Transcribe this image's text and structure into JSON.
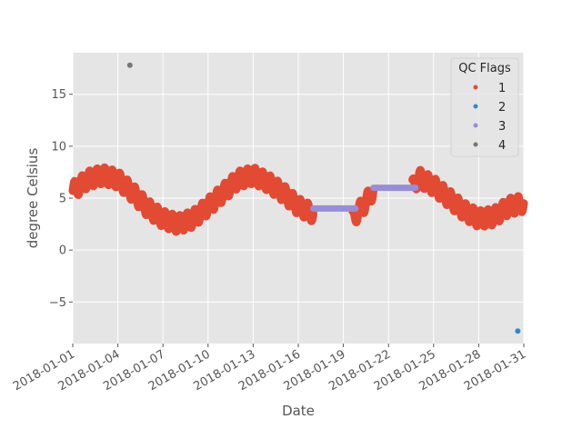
{
  "chart_data": {
    "type": "scatter",
    "title": "",
    "xlabel": "Date",
    "ylabel": "degree Celsius",
    "x_type": "date",
    "xlim": [
      "2018-01-01",
      "2018-01-31"
    ],
    "ylim": [
      -9,
      19
    ],
    "x_ticks": [
      "2018-01-01",
      "2018-01-04",
      "2018-01-07",
      "2018-01-10",
      "2018-01-13",
      "2018-01-16",
      "2018-01-19",
      "2018-01-22",
      "2018-01-25",
      "2018-01-28",
      "2018-01-31"
    ],
    "y_ticks": [
      -5,
      0,
      5,
      10,
      15
    ],
    "y_tick_labels": [
      "−5",
      "0",
      "5",
      "10",
      "15"
    ],
    "grid": true,
    "legend": {
      "title": "QC Flags",
      "placement": "top-right",
      "entries": [
        {
          "label": "1",
          "color": "#E24A33"
        },
        {
          "label": "2",
          "color": "#348ABD"
        },
        {
          "label": "3",
          "color": "#988ED5"
        },
        {
          "label": "4",
          "color": "#777777"
        }
      ]
    },
    "colors": {
      "background": "#E5E5E5",
      "grid": "#FFFFFF",
      "flag1": "#E24A33",
      "flag2": "#348ABD",
      "flag3": "#988ED5",
      "flag4": "#777777"
    },
    "series": [
      {
        "name": "1",
        "color": "#E24A33",
        "envelope": [
          [
            "2018-01-01",
            5.7
          ],
          [
            "2018-01-02",
            6.8
          ],
          [
            "2018-01-03",
            7.2
          ],
          [
            "2018-01-04",
            6.8
          ],
          [
            "2018-01-05",
            5.5
          ],
          [
            "2018-01-06",
            4.0
          ],
          [
            "2018-01-07",
            3.0
          ],
          [
            "2018-01-08",
            2.5
          ],
          [
            "2018-01-09",
            3.0
          ],
          [
            "2018-01-10",
            4.2
          ],
          [
            "2018-01-11",
            5.5
          ],
          [
            "2018-01-12",
            6.8
          ],
          [
            "2018-01-13",
            7.2
          ],
          [
            "2018-01-14",
            6.5
          ],
          [
            "2018-01-15",
            5.5
          ],
          [
            "2018-01-16",
            4.2
          ],
          [
            "2018-01-17",
            3.5
          ]
        ],
        "envelope_2": [
          [
            "2018-01-19.6",
            3.0
          ],
          [
            "2018-01-20.5",
            4.6
          ],
          [
            "2018-01-21.0",
            5.8
          ]
        ],
        "envelope_3": [
          [
            "2018-01-23.6",
            6.0
          ],
          [
            "2018-01-24",
            7.0
          ],
          [
            "2018-01-25",
            6.2
          ],
          [
            "2018-01-26",
            5.0
          ],
          [
            "2018-01-27",
            3.8
          ],
          [
            "2018-01-28",
            3.0
          ],
          [
            "2018-01-29",
            3.2
          ],
          [
            "2018-01-30",
            4.2
          ],
          [
            "2018-01-31",
            4.5
          ]
        ],
        "daily_amplitude": 0.8
      },
      {
        "name": "2",
        "color": "#348ABD",
        "points": [
          [
            "2018-01-30.6",
            -7.8
          ]
        ]
      },
      {
        "name": "3",
        "color": "#988ED5",
        "segments": [
          {
            "start": "2018-01-17.0",
            "end": "2018-01-19.8",
            "value": 4.0
          },
          {
            "start": "2018-01-21.0",
            "end": "2018-01-23.8",
            "value": 6.0
          }
        ]
      },
      {
        "name": "4",
        "color": "#777777",
        "points": [
          [
            "2018-01-04.8",
            17.8
          ]
        ]
      }
    ]
  }
}
